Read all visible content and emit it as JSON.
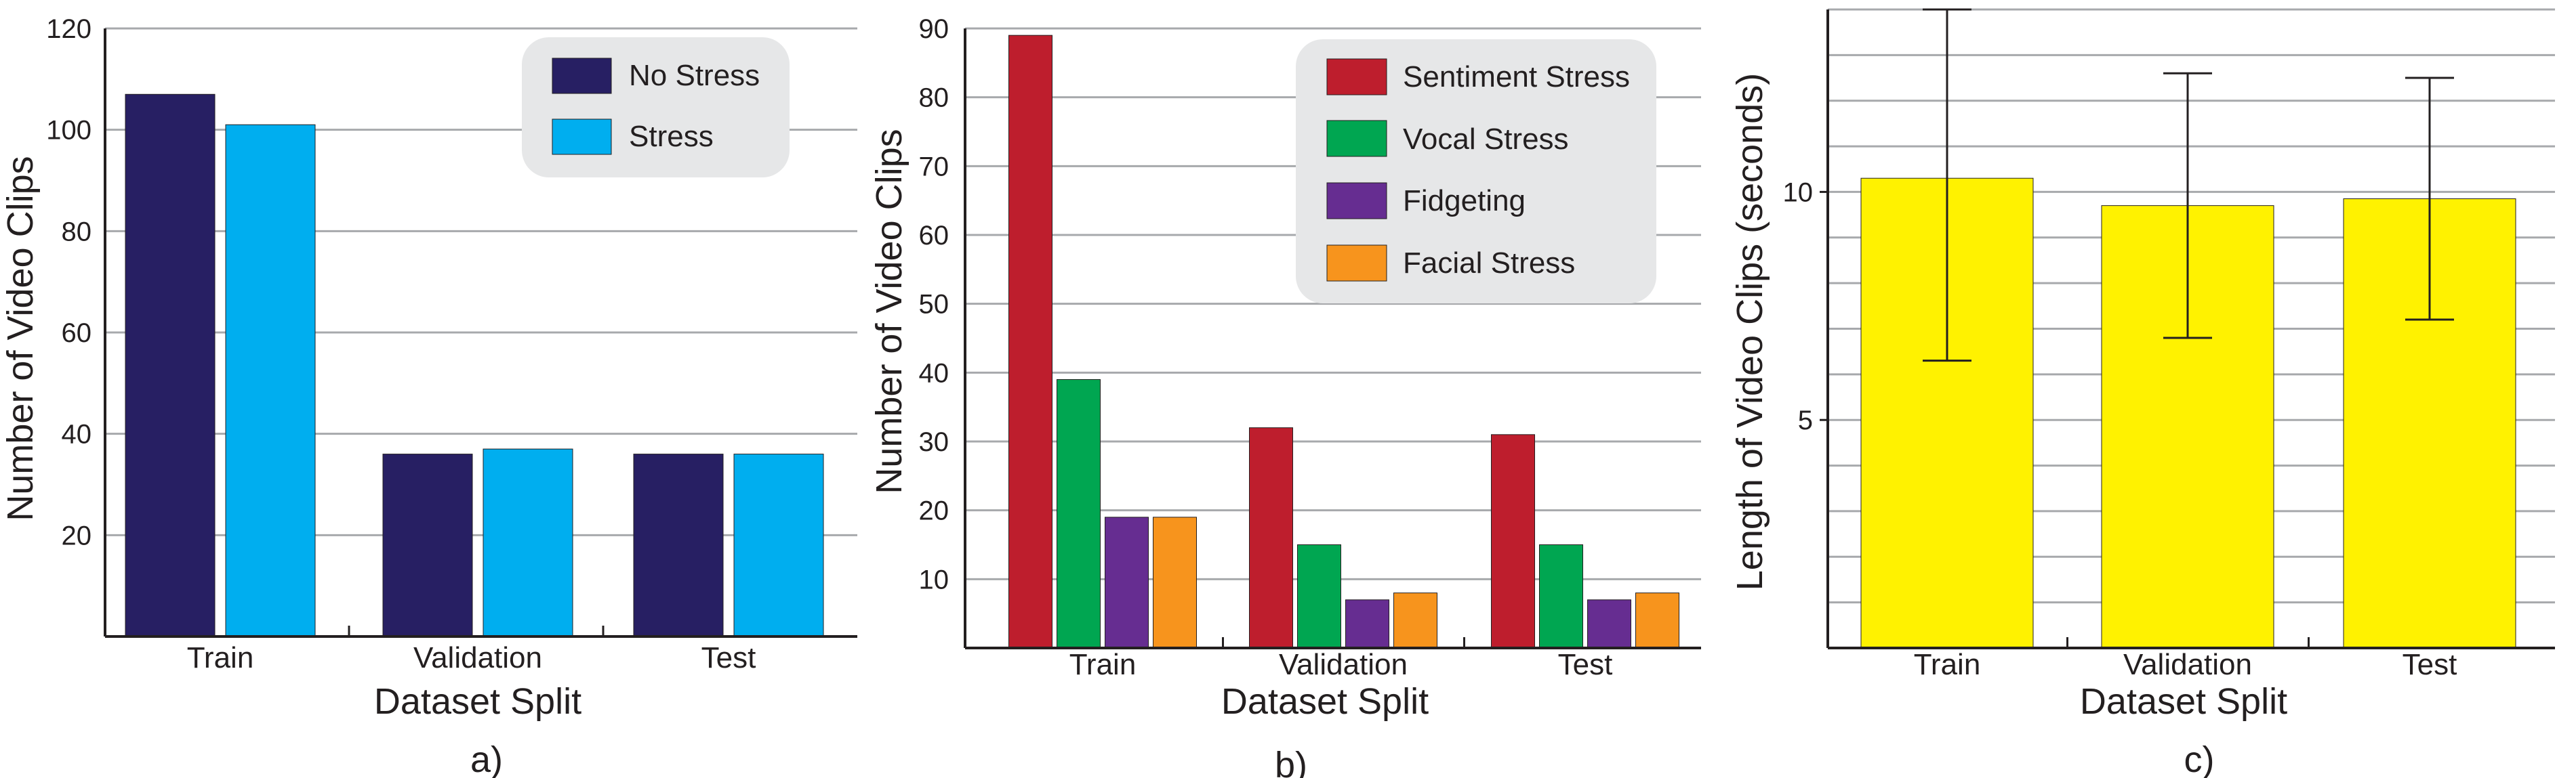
{
  "chart_data": [
    {
      "type": "bar",
      "panel_label": "a)",
      "categories": [
        "Train",
        "Validation",
        "Test"
      ],
      "series": [
        {
          "name": "No Stress",
          "values": [
            107,
            36,
            36
          ]
        },
        {
          "name": "Stress",
          "values": [
            101,
            37,
            36
          ]
        }
      ],
      "xlabel": "Dataset Split",
      "ylabel": "Number of Video Clips",
      "ylim": [
        0,
        120
      ],
      "yticks": [
        20,
        40,
        60,
        80,
        100,
        120
      ],
      "grid": true,
      "legend": "top-right",
      "colors": [
        "#271f63",
        "#00aeef"
      ]
    },
    {
      "type": "bar",
      "panel_label": "b)",
      "categories": [
        "Train",
        "Validation",
        "Test"
      ],
      "series": [
        {
          "name": "Sentiment Stress",
          "values": [
            89,
            32,
            31
          ]
        },
        {
          "name": "Vocal Stress",
          "values": [
            39,
            15,
            15
          ]
        },
        {
          "name": "Fidgeting",
          "values": [
            19,
            7,
            7
          ]
        },
        {
          "name": "Facial Stress",
          "values": [
            19,
            8,
            8
          ]
        }
      ],
      "xlabel": "Dataset Split",
      "ylabel": "Number of Video Clips",
      "ylim": [
        0,
        90
      ],
      "yticks": [
        10,
        20,
        30,
        40,
        50,
        60,
        70,
        80,
        90
      ],
      "grid": true,
      "legend": "top-right",
      "colors": [
        "#be1e2d",
        "#00a651",
        "#662d91",
        "#f7941d"
      ]
    },
    {
      "type": "bar",
      "panel_label": "c)",
      "categories": [
        "Train",
        "Validation",
        "Test"
      ],
      "series": [
        {
          "name": "",
          "values": [
            10.3,
            9.7,
            9.85
          ],
          "error_low": [
            6.3,
            6.8,
            7.2
          ],
          "error_high": [
            14.0,
            12.6,
            12.5
          ]
        }
      ],
      "xlabel": "Dataset Split",
      "ylabel": "Length of Video Clips (seconds)",
      "ylim": [
        0,
        14
      ],
      "yticks": [
        5,
        10
      ],
      "grid": true,
      "legend": "none",
      "colors": [
        "#fff200"
      ]
    }
  ]
}
